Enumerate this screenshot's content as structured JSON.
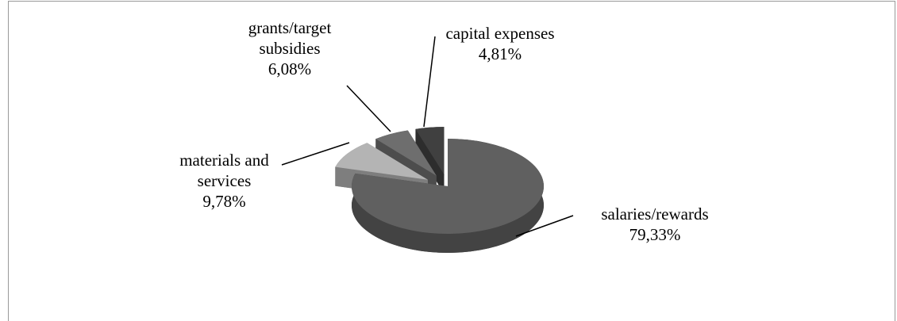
{
  "chart_data": {
    "type": "pie",
    "categories": [
      "salaries/rewards",
      "materials and services",
      "grants/target subsidies",
      "capital expenses"
    ],
    "values": [
      79.33,
      9.78,
      6.08,
      4.81
    ],
    "value_labels": [
      "79,33%",
      "9,78%",
      "6,08%",
      "4,81%"
    ],
    "colors": [
      "#606060",
      "#b4b4b4",
      "#6e6e6e",
      "#404040"
    ]
  }
}
